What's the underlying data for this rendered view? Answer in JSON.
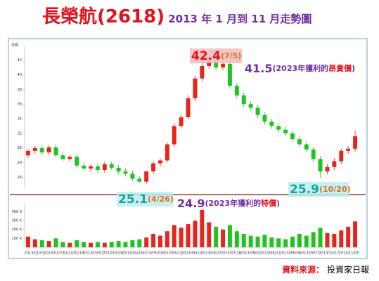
{
  "chart_data": {
    "type": "candlestick",
    "title": "長榮航(2618)",
    "subtitle": "2013 年 1 月到 11 月走勢圖",
    "panel_label": "日線",
    "open": [
      29.0,
      29.6,
      30.0,
      29.4,
      30.1,
      29.0,
      28.5,
      28.8,
      27.6,
      27.2,
      27.5,
      27.0,
      27.8,
      27.3,
      26.8,
      26.5,
      25.8,
      25.4,
      26.8,
      27.9,
      28.3,
      30.5,
      33.0,
      34.2,
      36.8,
      39.5,
      41.2,
      41.8,
      41.0,
      41.5,
      38.5,
      37.2,
      36.0,
      35.5,
      34.5,
      33.6,
      33.0,
      32.5,
      32.0,
      31.2,
      30.5,
      29.8,
      28.5,
      26.8,
      27.4,
      28.2,
      29.6,
      29.9
    ],
    "high": [
      29.9,
      30.3,
      30.4,
      30.4,
      30.5,
      29.4,
      29.1,
      29.2,
      28.0,
      27.8,
      27.9,
      28.1,
      28.2,
      27.7,
      27.2,
      26.9,
      26.2,
      26.9,
      28.2,
      28.6,
      30.8,
      33.4,
      34.6,
      37.2,
      39.9,
      41.6,
      42.4,
      42.2,
      41.9,
      41.9,
      38.9,
      37.6,
      36.4,
      35.9,
      34.9,
      34.0,
      33.4,
      32.9,
      32.4,
      31.6,
      30.9,
      30.2,
      28.9,
      27.8,
      28.6,
      29.9,
      30.3,
      32.4
    ],
    "low": [
      28.6,
      29.2,
      29.0,
      29.0,
      28.7,
      28.2,
      28.1,
      27.2,
      26.9,
      26.8,
      26.6,
      26.6,
      27.0,
      26.4,
      26.1,
      25.5,
      25.3,
      25.1,
      26.4,
      27.5,
      28.0,
      30.1,
      32.6,
      33.9,
      36.4,
      39.1,
      40.8,
      40.6,
      40.6,
      38.1,
      36.8,
      35.6,
      35.1,
      34.1,
      33.2,
      32.6,
      32.1,
      31.6,
      30.8,
      30.1,
      29.4,
      28.1,
      25.9,
      26.4,
      27.0,
      27.8,
      29.2,
      29.5
    ],
    "close": [
      29.6,
      30.0,
      29.4,
      30.1,
      29.0,
      28.5,
      28.8,
      27.6,
      27.2,
      27.5,
      27.0,
      27.8,
      27.3,
      26.8,
      26.5,
      25.8,
      25.4,
      26.8,
      27.9,
      28.3,
      30.5,
      33.0,
      34.2,
      36.8,
      39.5,
      41.2,
      41.8,
      41.0,
      41.5,
      38.5,
      37.2,
      36.0,
      35.5,
      34.5,
      33.6,
      33.0,
      32.5,
      32.0,
      31.2,
      30.5,
      29.8,
      28.5,
      26.8,
      27.4,
      28.2,
      29.6,
      29.9,
      31.6
    ],
    "volume": [
      120,
      90,
      80,
      70,
      100,
      60,
      50,
      80,
      60,
      50,
      60,
      50,
      60,
      70,
      60,
      80,
      90,
      110,
      150,
      130,
      180,
      250,
      220,
      260,
      300,
      420,
      280,
      230,
      200,
      250,
      180,
      150,
      130,
      120,
      140,
      110,
      100,
      90,
      120,
      150,
      130,
      170,
      220,
      160,
      150,
      190,
      230,
      290
    ],
    "up_color": "#e8251c",
    "down_color": "#1fc41f",
    "ylim": [
      24.5,
      43.5
    ],
    "yticks": [
      26,
      28,
      30,
      32,
      34,
      36,
      38,
      40,
      42
    ],
    "vlim": [
      0,
      450
    ],
    "vticks": [
      {
        "value": 100,
        "label": "100 K"
      },
      {
        "value": 200,
        "label": "200 K"
      },
      {
        "value": 300,
        "label": "300 K"
      },
      {
        "value": 400,
        "label": "400 K"
      }
    ],
    "xlabels": [
      "2013/01/03",
      "2013/01/23",
      "2013/02/19",
      "2013/03/07",
      "2013/03/26",
      "2013/04/15",
      "2013/05/03",
      "2013/05/22",
      "2013/06/10",
      "2013/06/27",
      "2013/07/16",
      "2013/08/02",
      "2013/08/21",
      "2013/09/09",
      "2013/09/27",
      "2013/10/17",
      "2013/11/05"
    ],
    "annotations": [
      {
        "value": "42.4",
        "note": "(7/5)"
      },
      {
        "value": "41.5",
        "note": "(2023年獲利的",
        "highlight": "昂貴價",
        "end": ")"
      },
      {
        "value": "25.1",
        "note": "(4/26)"
      },
      {
        "value": "24.9",
        "note": "(2023年獲利的",
        "highlight": "特價",
        "end": ")"
      },
      {
        "value": "25.9",
        "note": "(10/20)"
      }
    ],
    "source_label": "資料來源：",
    "source": "投資家日報"
  }
}
